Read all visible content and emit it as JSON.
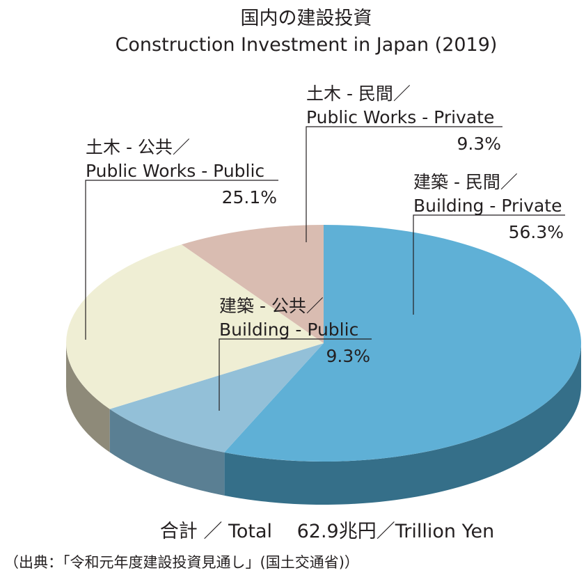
{
  "chart_data": {
    "type": "pie",
    "title_jp": "国内の建設投資",
    "title_en": "Construction Investment in Japan (2019)",
    "slices": [
      {
        "key": "building_private",
        "label_jp": "建築 - 民間／",
        "label_en": "Building - Private",
        "value": 56.3,
        "value_label": "56.3%",
        "color": "#5fb0d6",
        "side_color": "#356f89"
      },
      {
        "key": "building_public",
        "label_jp": "建築 - 公共／",
        "label_en": "Building - Public",
        "value": 9.3,
        "value_label": "9.3%",
        "color": "#93c0d8",
        "side_color": "#5a7f93"
      },
      {
        "key": "public_works_public",
        "label_jp": "土木 - 公共／",
        "label_en": "Public Works - Public",
        "value": 25.1,
        "value_label": "25.1%",
        "color": "#efeed4",
        "side_color": "#8e8a79"
      },
      {
        "key": "public_works_private",
        "label_jp": "土木 - 民間／",
        "label_en": "Public Works - Private",
        "value": 9.3,
        "value_label": "9.3%",
        "color": "#d9bcb1",
        "side_color": "#8f7a72"
      }
    ],
    "total_text": "合計 ／ Total　 62.9兆円／Trillion Yen",
    "source_text": "（出典：「令和元年度建設投資見通し」(国土交通省)）"
  }
}
